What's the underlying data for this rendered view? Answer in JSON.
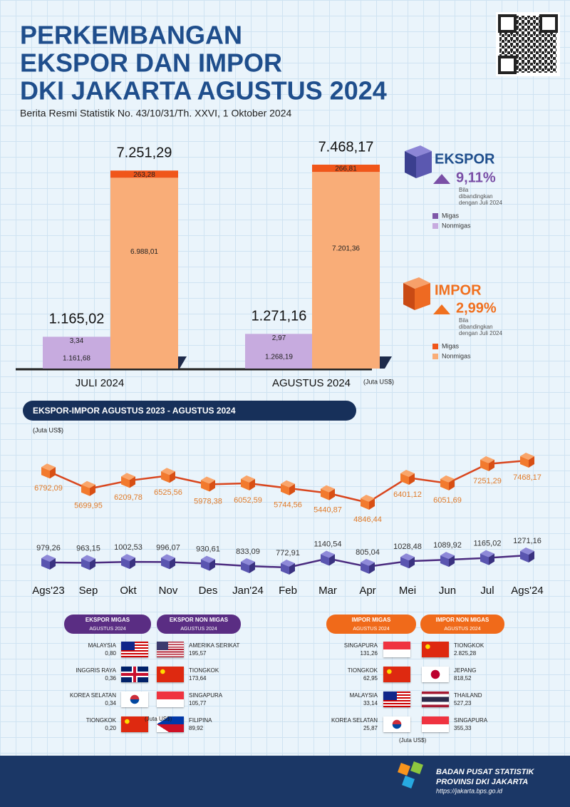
{
  "header": {
    "title_lines": [
      "PERKEMBANGAN",
      "EKSPOR DAN IMPOR",
      "DKI JAKARTA AGUSTUS 2024"
    ],
    "subtitle": "Berita Resmi Statistik No. 43/10/31/Th. XXVI, 1 Oktober 2024"
  },
  "chart_data": [
    {
      "type": "stacked_bar",
      "categories": [
        "JULI 2024",
        "AGUSTUS 2024"
      ],
      "unit": "(Juta US$)",
      "stacks": [
        {
          "name": "EKSPOR",
          "change": "9,11%",
          "note": "Bila dibandingkan dengan Juli 2024",
          "color": "#7a4fa6",
          "totals": [
            1165.02,
            1271.16
          ],
          "total_labels": [
            "1.165,02",
            "1.271,16"
          ],
          "series": [
            {
              "name": "Migas",
              "color": "#7e57a8",
              "values": [
                3.34,
                2.97
              ],
              "value_labels": [
                "3,34",
                "2,97"
              ]
            },
            {
              "name": "Nonmigas",
              "color": "#c7abdf",
              "values": [
                1161.68,
                1268.19
              ],
              "value_labels": [
                "1.161,68",
                "1.268,19"
              ]
            }
          ]
        },
        {
          "name": "IMPOR",
          "change": "2,99%",
          "note": "Bila dibandingkan dengan Juli 2024",
          "color": "#f0701f",
          "totals": [
            7251.29,
            7468.17
          ],
          "total_labels": [
            "7.251,29",
            "7.468,17"
          ],
          "series": [
            {
              "name": "Migas",
              "color": "#f0561a",
              "values": [
                263.28,
                266.81
              ],
              "value_labels": [
                "263,28",
                "266,81"
              ]
            },
            {
              "name": "Nonmigas",
              "color": "#f9ad78",
              "values": [
                6988.01,
                7201.36
              ],
              "value_labels": [
                "6.988,01",
                "7.201,36"
              ]
            }
          ]
        }
      ]
    },
    {
      "type": "line",
      "title": "EKSPOR-IMPOR AGUSTUS 2023 - AGUSTUS 2024",
      "unit": "(Juta US$)",
      "categories": [
        "Ags'23",
        "Sep",
        "Okt",
        "Nov",
        "Des",
        "Jan'24",
        "Feb",
        "Mar",
        "Apr",
        "Mei",
        "Jun",
        "Jul",
        "Ags'24"
      ],
      "series": [
        {
          "color": "#d9461e",
          "values": [
            6792.09,
            5699.95,
            6209.78,
            6525.56,
            5978.38,
            6052.59,
            5744.56,
            5440.87,
            4846.44,
            6401.12,
            6051.69,
            7251.29,
            7468.17
          ],
          "value_labels": [
            "6792,09",
            "5699,95",
            "6209,78",
            "6525,56",
            "5978,38",
            "6052,59",
            "5744,56",
            "5440,87",
            "4846,44",
            "6401,12",
            "6051,69",
            "7251,29",
            "7468,17"
          ]
        },
        {
          "color": "#4b2b7f",
          "values": [
            979.26,
            963.15,
            1002.53,
            996.07,
            930.61,
            833.09,
            772.91,
            1140.54,
            805.04,
            1028.48,
            1089.92,
            1165.02,
            1271.16
          ],
          "value_labels": [
            "979,26",
            "963,15",
            "1002,53",
            "996,07",
            "930,61",
            "833,09",
            "772,91",
            "1140,54",
            "805,04",
            "1028,48",
            "1089,92",
            "1165,02",
            "1271,16"
          ]
        }
      ]
    }
  ],
  "ranks": [
    {
      "title": "EKSPOR MIGAS",
      "subtitle": "AGUSTUS 2024",
      "items": [
        {
          "country": "MALAYSIA",
          "value": "0,80"
        },
        {
          "country": "INGGRIS RAYA",
          "value": "0,36"
        },
        {
          "country": "KOREA SELATAN",
          "value": "0,34"
        },
        {
          "country": "TIONGKOK",
          "value": "0,20"
        }
      ]
    },
    {
      "title": "EKSPOR NON MIGAS",
      "subtitle": "AGUSTUS 2024",
      "items": [
        {
          "country": "AMERIKA SERIKAT",
          "value": "195,57"
        },
        {
          "country": "TIONGKOK",
          "value": "173,64"
        },
        {
          "country": "SINGAPURA",
          "value": "105,77"
        },
        {
          "country": "FILIPINA",
          "value": "89,92"
        }
      ]
    },
    {
      "title": "IMPOR MIGAS",
      "subtitle": "AGUSTUS 2024",
      "items": [
        {
          "country": "SINGAPURA",
          "value": "131,26"
        },
        {
          "country": "TIONGKOK",
          "value": "62,95"
        },
        {
          "country": "MALAYSIA",
          "value": "33,14"
        },
        {
          "country": "KOREA SELATAN",
          "value": "25,87"
        }
      ]
    },
    {
      "title": "IMPOR NON MIGAS",
      "subtitle": "AGUSTUS 2024",
      "items": [
        {
          "country": "TIONGKOK",
          "value": "2.825,28"
        },
        {
          "country": "JEPANG",
          "value": "818,52"
        },
        {
          "country": "THAILAND",
          "value": "527,23"
        },
        {
          "country": "SINGAPURA",
          "value": "355,33"
        }
      ]
    }
  ],
  "ranks_unit": "(Juta US$)",
  "footer": {
    "org": "BADAN PUSAT STATISTIK",
    "region": "PROVINSI DKI JAKARTA",
    "url": "https://jakarta.bps.go.id"
  }
}
